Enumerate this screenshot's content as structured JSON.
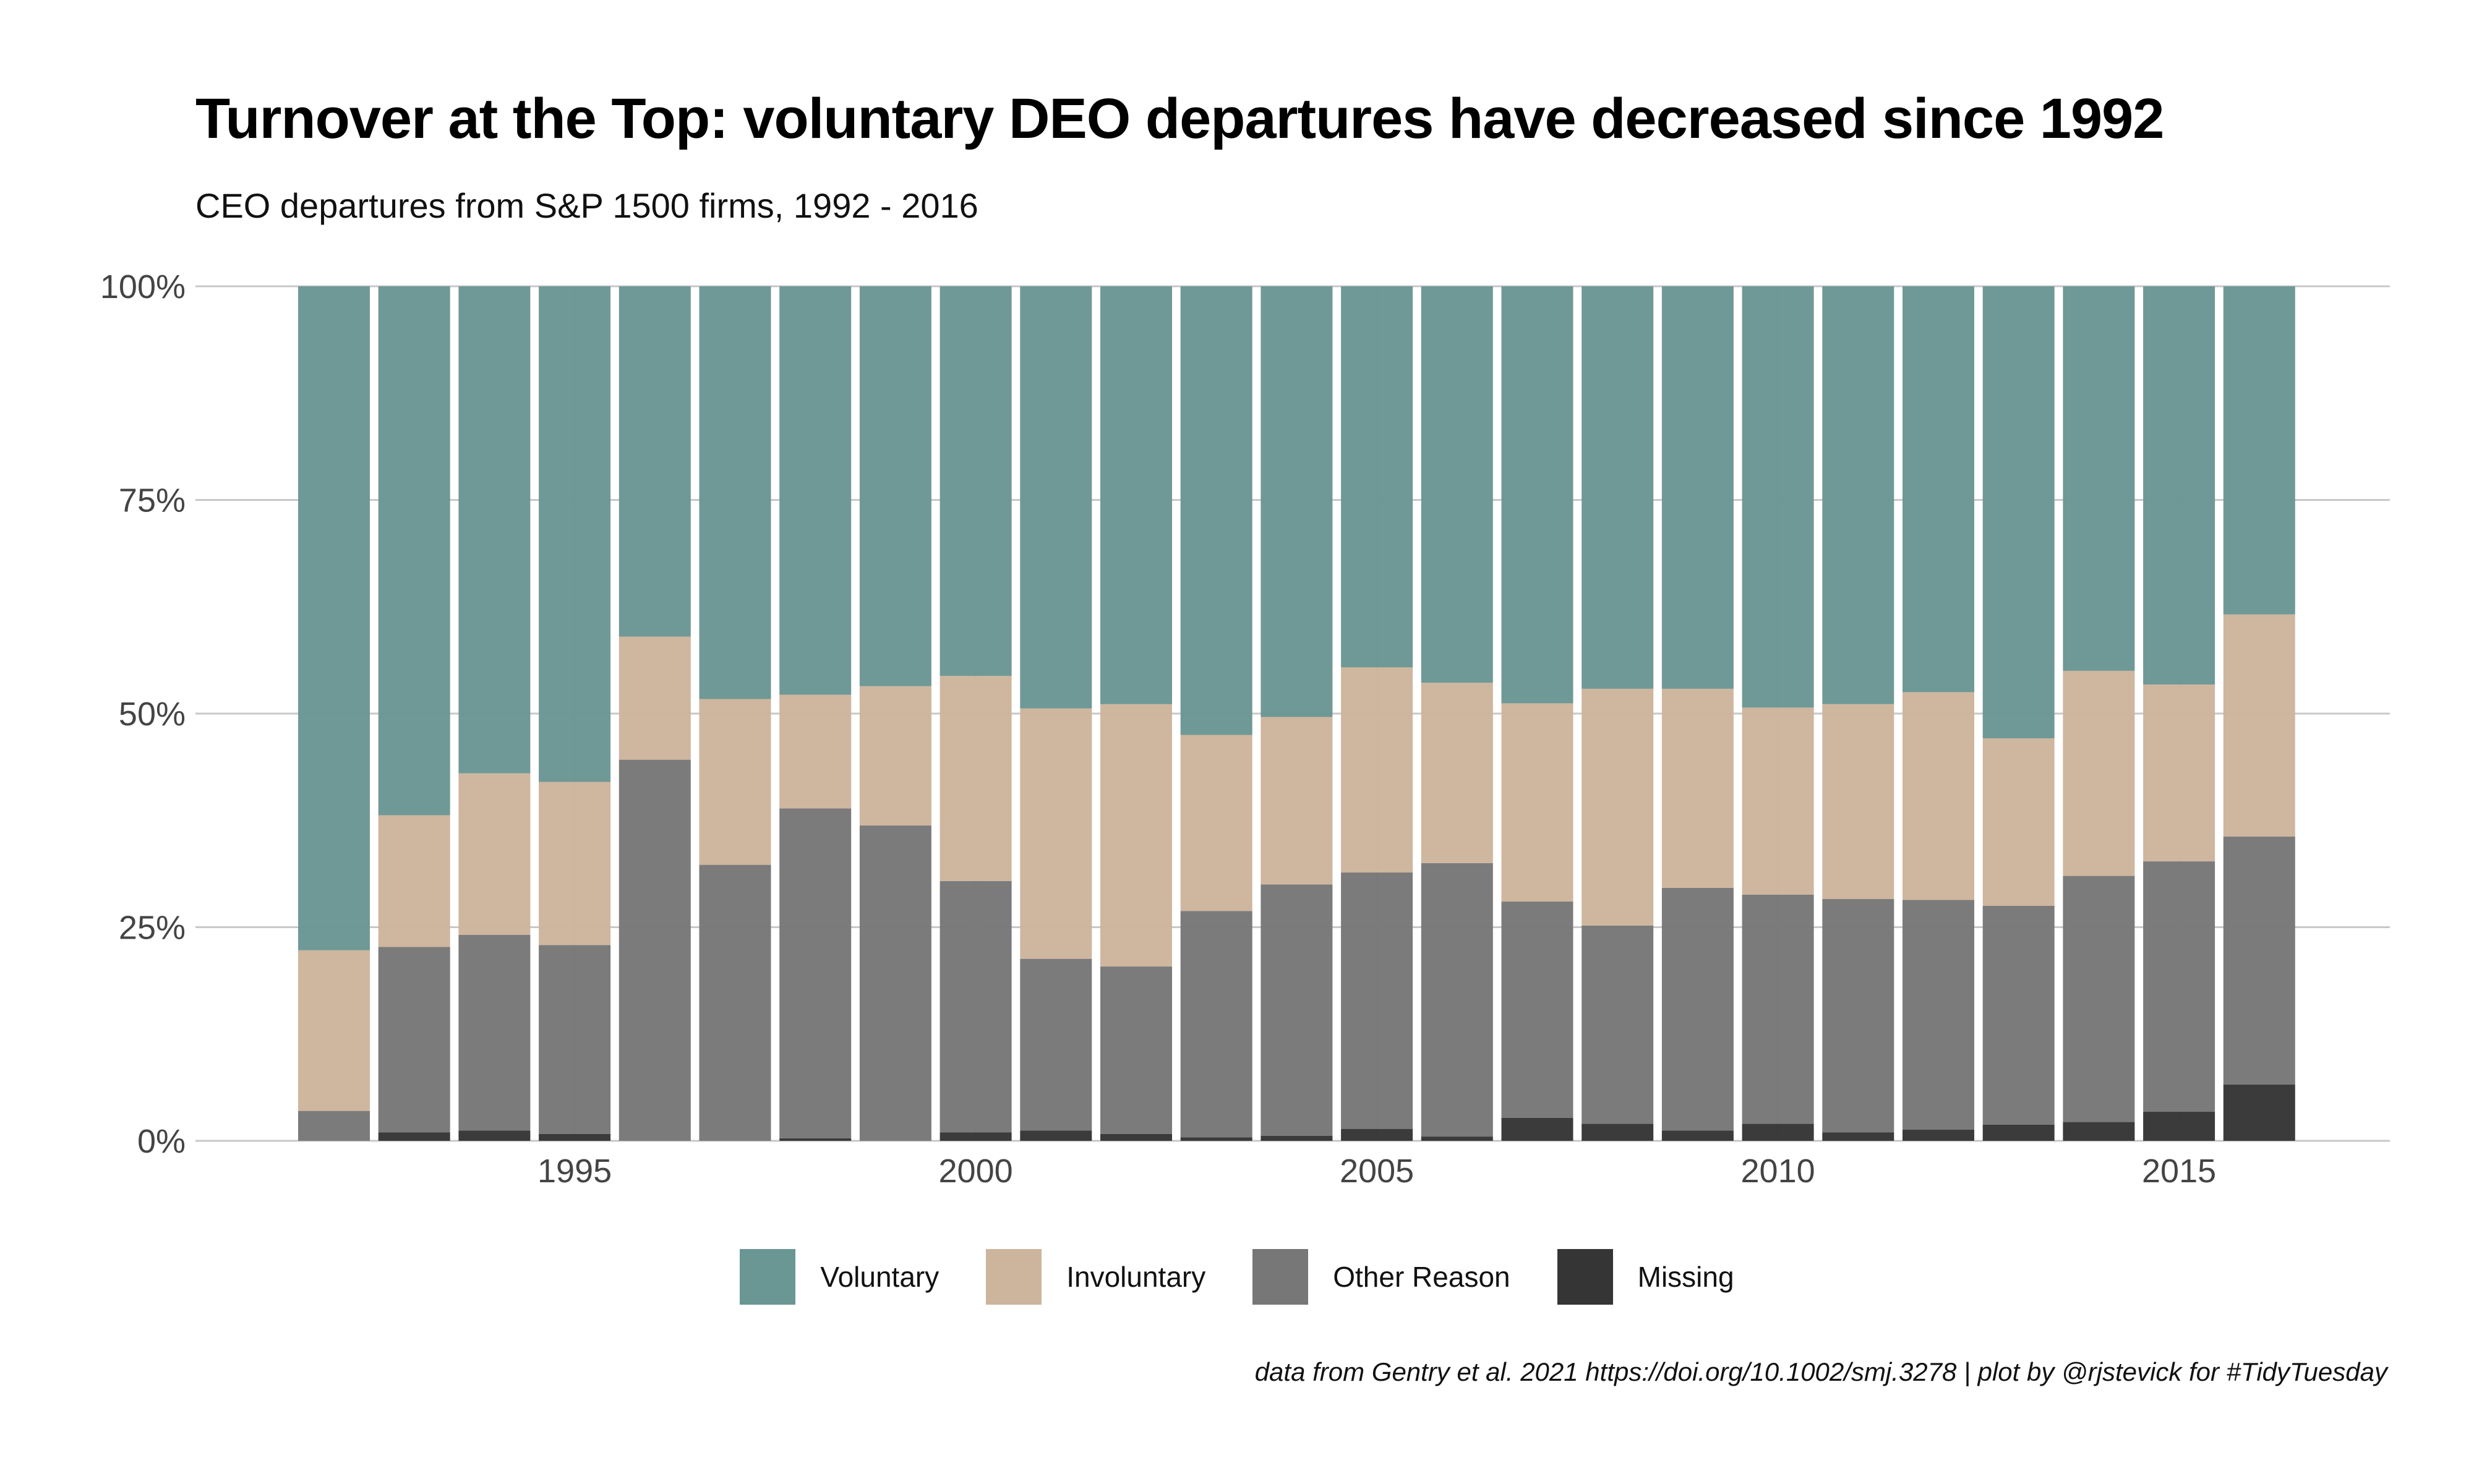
{
  "chart_data": {
    "type": "bar",
    "stacked": true,
    "normalized": true,
    "title": "Turnover at the Top: voluntary DEO departures have decreased since 1992",
    "subtitle": "CEO departures from S&P 1500 firms, 1992 - 2016",
    "caption": "data from Gentry et al. 2021 https://doi.org/10.1002/smj.3278 | plot by @rjstevick for #TidyTuesday",
    "x": [
      1992,
      1993,
      1994,
      1995,
      1996,
      1997,
      1998,
      1999,
      2000,
      2001,
      2002,
      2003,
      2004,
      2005,
      2006,
      2007,
      2008,
      2009,
      2010,
      2011,
      2012,
      2013,
      2014,
      2015,
      2016
    ],
    "x_ticks": [
      1995,
      2000,
      2005,
      2010,
      2015
    ],
    "x_tick_labels": [
      "1995",
      "2000",
      "2005",
      "2010",
      "2015"
    ],
    "y_ticks": [
      0,
      0.25,
      0.5,
      0.75,
      1.0
    ],
    "y_tick_labels": [
      "0%",
      "25%",
      "50%",
      "75%",
      "100%"
    ],
    "ylim": [
      0,
      1
    ],
    "grid": true,
    "legend_position": "bottom",
    "series": [
      {
        "name": "Missing",
        "color": "#353535",
        "values": [
          0.0,
          0.01,
          0.012,
          0.008,
          0.0,
          0.0,
          0.003,
          0.0,
          0.01,
          0.012,
          0.008,
          0.004,
          0.006,
          0.014,
          0.005,
          0.027,
          0.02,
          0.012,
          0.02,
          0.01,
          0.013,
          0.019,
          0.022,
          0.034,
          0.066
        ]
      },
      {
        "name": "Other Reason",
        "color": "#777777",
        "values": [
          0.035,
          0.217,
          0.229,
          0.221,
          0.446,
          0.323,
          0.386,
          0.369,
          0.294,
          0.201,
          0.196,
          0.265,
          0.294,
          0.3,
          0.32,
          0.253,
          0.232,
          0.284,
          0.268,
          0.273,
          0.269,
          0.256,
          0.288,
          0.293,
          0.29
        ]
      },
      {
        "name": "Involuntary",
        "color": "#cdb49c",
        "values": [
          0.188,
          0.154,
          0.189,
          0.191,
          0.144,
          0.194,
          0.133,
          0.163,
          0.24,
          0.293,
          0.307,
          0.206,
          0.196,
          0.24,
          0.211,
          0.232,
          0.277,
          0.233,
          0.219,
          0.228,
          0.243,
          0.196,
          0.24,
          0.207,
          0.26
        ]
      },
      {
        "name": "Voluntary",
        "color": "#6a9693",
        "values": [
          0.777,
          0.619,
          0.57,
          0.58,
          0.41,
          0.483,
          0.478,
          0.468,
          0.456,
          0.494,
          0.489,
          0.525,
          0.504,
          0.446,
          0.464,
          0.488,
          0.471,
          0.471,
          0.493,
          0.489,
          0.475,
          0.529,
          0.45,
          0.466,
          0.384
        ]
      }
    ],
    "legend_order": [
      "Voluntary",
      "Involuntary",
      "Other Reason",
      "Missing"
    ]
  }
}
